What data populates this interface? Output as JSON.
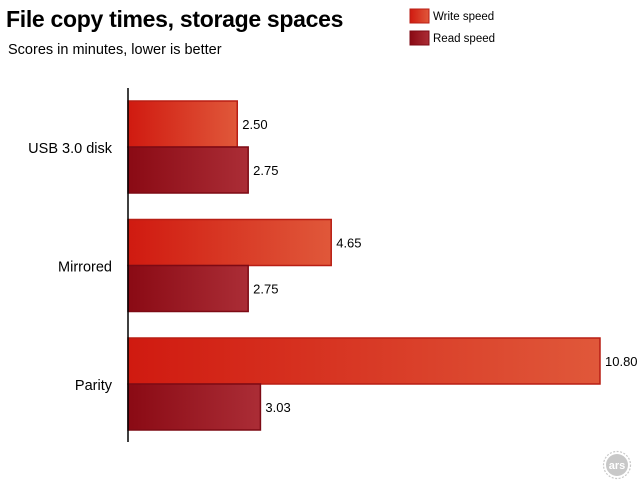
{
  "chart_data": {
    "type": "bar",
    "orientation": "horizontal",
    "title": "File copy times, storage spaces",
    "subtitle": "Scores in minutes, lower is better",
    "categories": [
      "USB 3.0 disk",
      "Mirrored",
      "Parity"
    ],
    "series": [
      {
        "name": "Write speed",
        "values": [
          2.5,
          4.65,
          10.8
        ],
        "labels": [
          "2.50",
          "4.65",
          "10.80"
        ],
        "color": "#d9291b"
      },
      {
        "name": "Read speed",
        "values": [
          2.75,
          2.75,
          3.03
        ],
        "labels": [
          "2.75",
          "2.75",
          "3.03"
        ],
        "color": "#a01020"
      }
    ],
    "xlim": [
      0,
      10.8
    ],
    "grid": false,
    "legend_position": "top-right"
  },
  "logo": {
    "text": "ars"
  }
}
